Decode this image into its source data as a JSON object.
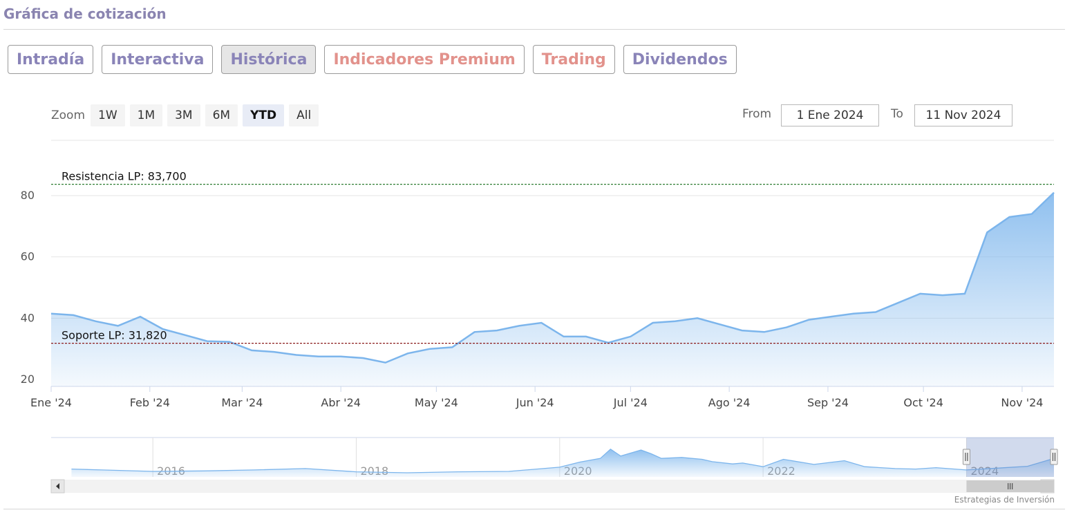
{
  "section_title": "Gráfica de cotización",
  "tabs": [
    {
      "label": "Intradía",
      "tone": "purple",
      "active": false
    },
    {
      "label": "Interactiva",
      "tone": "purple",
      "active": false
    },
    {
      "label": "Histórica",
      "tone": "purple",
      "active": true
    },
    {
      "label": "Indicadores Premium",
      "tone": "red",
      "active": false
    },
    {
      "label": "Trading",
      "tone": "red",
      "active": false
    },
    {
      "label": "Dividendos",
      "tone": "purple",
      "active": false
    }
  ],
  "range_selector": {
    "zoom_label": "Zoom",
    "buttons": [
      "1W",
      "1M",
      "3M",
      "6M",
      "YTD",
      "All"
    ],
    "selected": "YTD",
    "from_label": "From",
    "from_value": "1 Ene 2024",
    "to_label": "To",
    "to_value": "11 Nov 2024"
  },
  "colors": {
    "series": "#7cb5ec",
    "resistance_line": "#2e7d32",
    "support_line": "#8b1a1a",
    "tab_purple": "#8a84b8",
    "tab_red": "#e2928c"
  },
  "chart_data": [
    {
      "type": "area",
      "x_type": "date",
      "x": [
        "2024-01-01",
        "2024-01-08",
        "2024-01-15",
        "2024-01-22",
        "2024-01-29",
        "2024-02-05",
        "2024-02-12",
        "2024-02-19",
        "2024-02-26",
        "2024-03-04",
        "2024-03-11",
        "2024-03-18",
        "2024-03-25",
        "2024-04-01",
        "2024-04-08",
        "2024-04-15",
        "2024-04-22",
        "2024-04-29",
        "2024-05-06",
        "2024-05-13",
        "2024-05-20",
        "2024-05-27",
        "2024-06-03",
        "2024-06-10",
        "2024-06-17",
        "2024-06-24",
        "2024-07-01",
        "2024-07-08",
        "2024-07-15",
        "2024-07-22",
        "2024-07-29",
        "2024-08-05",
        "2024-08-12",
        "2024-08-19",
        "2024-08-26",
        "2024-09-02",
        "2024-09-09",
        "2024-09-16",
        "2024-09-23",
        "2024-09-30",
        "2024-10-07",
        "2024-10-14",
        "2024-10-21",
        "2024-10-28",
        "2024-11-04",
        "2024-11-11"
      ],
      "y": [
        41.5,
        41,
        39,
        37.5,
        40.5,
        36.5,
        34.5,
        32.5,
        32.3,
        29.5,
        29,
        28,
        27.5,
        27.5,
        27,
        25.5,
        28.5,
        30,
        30.5,
        35.5,
        36,
        37.5,
        38.5,
        34,
        34,
        32,
        34,
        38.5,
        39,
        40,
        38,
        36,
        35.5,
        37,
        39.5,
        40.5,
        41.5,
        42,
        45,
        48,
        47.5,
        48,
        68,
        73,
        74,
        81
      ],
      "ylim": [
        17,
        83.7
      ],
      "yticks": [
        20,
        40,
        60,
        80
      ],
      "xtick_labels": [
        "Ene '24",
        "Feb '24",
        "Mar '24",
        "Abr '24",
        "May '24",
        "Jun '24",
        "Jul '24",
        "Ago '24",
        "Sep '24",
        "Oct '24",
        "Nov '24"
      ],
      "xtick_dates": [
        "2024-01-01",
        "2024-02-01",
        "2024-03-01",
        "2024-04-01",
        "2024-05-01",
        "2024-06-01",
        "2024-07-01",
        "2024-08-01",
        "2024-09-01",
        "2024-10-01",
        "2024-11-01"
      ],
      "xlim": [
        "2024-01-01",
        "2024-11-11"
      ],
      "plot_lines": [
        {
          "label": "Resistencia LP: 83,700",
          "value": 83.7
        },
        {
          "label": "Soporte LP: 31,820",
          "value": 31.82
        }
      ],
      "grid": true
    },
    {
      "type": "area",
      "role": "navigator",
      "x": [
        2015.2,
        2015.5,
        2016,
        2016.5,
        2017,
        2017.5,
        2018,
        2018.5,
        2019,
        2019.5,
        2020,
        2020.2,
        2020.4,
        2020.5,
        2020.6,
        2020.8,
        2020.9,
        2021,
        2021.2,
        2021.4,
        2021.5,
        2021.7,
        2021.8,
        2022,
        2022.2,
        2022.5,
        2022.8,
        2023,
        2023.3,
        2023.5,
        2023.7,
        2024,
        2024.3,
        2024.6,
        2024.86
      ],
      "y": [
        17,
        15,
        12,
        13,
        15,
        18,
        11,
        9,
        11,
        12,
        21,
        32,
        40,
        60,
        45,
        58,
        50,
        40,
        42,
        38,
        33,
        28,
        30,
        22,
        38,
        27,
        35,
        22,
        18,
        17,
        20,
        15,
        19,
        23,
        40
      ],
      "xlim": [
        2015.0,
        2024.86
      ],
      "ylim": [
        0,
        85
      ],
      "xtick_labels": [
        "2016",
        "2018",
        "2020",
        "2022",
        "2024"
      ],
      "selection": {
        "from": 2024.0,
        "to": 2024.86
      }
    }
  ],
  "credits": "Estrategias de Inversión"
}
